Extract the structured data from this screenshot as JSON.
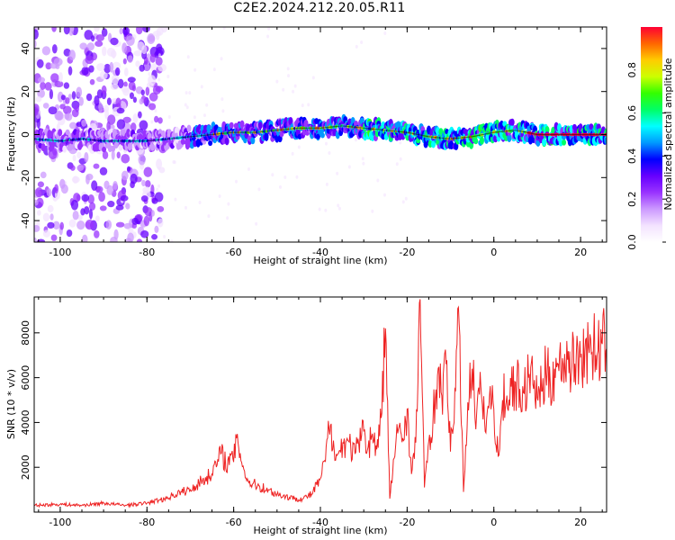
{
  "title": "C2E2.2024.212.20.05.R11",
  "colors": {
    "snr_line": "#ee2222",
    "colormap": [
      "#ffffff",
      "#f3e3ff",
      "#cc99ff",
      "#9933ff",
      "#6600ff",
      "#0000ff",
      "#0099ff",
      "#00ffff",
      "#00ff66",
      "#33ff00",
      "#ccff00",
      "#ffcc00",
      "#ff6600",
      "#ff0033"
    ],
    "ridge_line": "#111111"
  },
  "chart_data": [
    {
      "type": "heatmap",
      "xlabel": "Height of straight line (km)",
      "ylabel": "Frequency (Hz)",
      "xlim": [
        -106,
        26
      ],
      "ylim": [
        -50,
        50
      ],
      "xticks": [
        -100,
        -80,
        -60,
        -40,
        -20,
        0,
        20
      ],
      "yticks": [
        -40,
        -20,
        0,
        20,
        40
      ],
      "ridge": {
        "x": [
          -106,
          -100,
          -95,
          -90,
          -85,
          -80,
          -75,
          -70,
          -65,
          -60,
          -55,
          -50,
          -45,
          -40,
          -35,
          -30,
          -25,
          -20,
          -15,
          -10,
          -5,
          0,
          5,
          10,
          15,
          20,
          26
        ],
        "y": [
          -2,
          -3,
          -2,
          -3,
          -3,
          -3,
          -2,
          -1,
          0,
          1,
          1,
          2,
          3,
          3,
          4,
          3,
          2,
          1,
          -1,
          -2,
          -1,
          1,
          2,
          0,
          0,
          0,
          0
        ]
      },
      "colorbar": {
        "label": "Normalized spectral amplitude",
        "range": [
          0,
          1
        ],
        "ticks": [
          "0.0",
          "0.2",
          "0.4",
          "0.6",
          "0.8"
        ]
      }
    },
    {
      "type": "line",
      "xlabel": "Height of straight line (km)",
      "ylabel": "SNR (10 * v/v)",
      "xlim": [
        -106,
        26
      ],
      "ylim": [
        0,
        9600
      ],
      "xticks": [
        -100,
        -80,
        -60,
        -40,
        -20,
        0,
        20
      ],
      "yticks": [
        2000,
        4000,
        6000,
        8000
      ],
      "series": [
        {
          "x": [
            -106,
            -100,
            -95,
            -90,
            -85,
            -80,
            -76,
            -72,
            -70,
            -68,
            -65,
            -63,
            -61,
            -59,
            -57,
            -55,
            -52,
            -50,
            -48,
            -46,
            -44,
            -42,
            -40,
            -39,
            -38,
            -36,
            -34,
            -32,
            -30,
            -29,
            -28,
            -27,
            -26,
            -25,
            -24,
            -23,
            -22,
            -21,
            -20,
            -19,
            -18,
            -17,
            -16,
            -15,
            -14,
            -13,
            -12,
            -11,
            -10,
            -9,
            -8,
            -7,
            -6,
            -5,
            -4,
            -3,
            -2,
            -1,
            0,
            1,
            2,
            3,
            4,
            5,
            6,
            7,
            8,
            9,
            10,
            11,
            12,
            13,
            14,
            15,
            16,
            17,
            18,
            19,
            20,
            21,
            22,
            23,
            24,
            25,
            26
          ],
          "y": [
            300,
            350,
            300,
            400,
            300,
            400,
            600,
            900,
            1000,
            1300,
            1700,
            2600,
            2100,
            3100,
            1400,
            1200,
            1000,
            800,
            700,
            600,
            600,
            800,
            1500,
            2300,
            3700,
            2600,
            3200,
            2600,
            3600,
            2900,
            3500,
            2800,
            4200,
            8200,
            600,
            2400,
            3700,
            3300,
            4600,
            1700,
            3100,
            9500,
            1100,
            3200,
            4300,
            6100,
            5200,
            6600,
            2700,
            5500,
            8400,
            900,
            4900,
            6400,
            4300,
            5600,
            3600,
            5200,
            4600,
            2500,
            5000,
            5200,
            5600,
            5800,
            5500,
            5300,
            6000,
            5700,
            5100,
            5400,
            6200,
            5800,
            6400,
            6300,
            6600,
            6800,
            6500,
            7000,
            6900,
            7200,
            7100,
            7400,
            7200,
            7500,
            7300
          ]
        }
      ]
    }
  ]
}
